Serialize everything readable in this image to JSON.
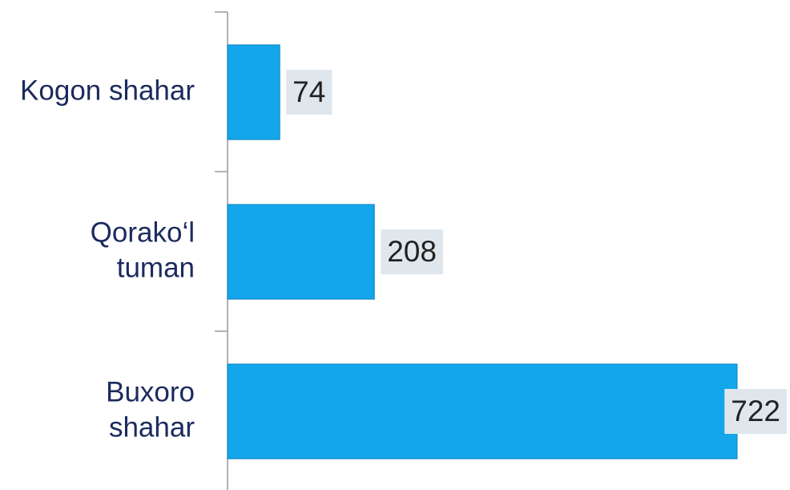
{
  "chart_data": {
    "type": "bar",
    "orientation": "horizontal",
    "categories": [
      [
        "Kogon shahar"
      ],
      [
        "Qorako‘l",
        "tuman"
      ],
      [
        "Buxoro",
        "shahar"
      ]
    ],
    "values": [
      74,
      208,
      722
    ],
    "color": "#13a6eb"
  }
}
